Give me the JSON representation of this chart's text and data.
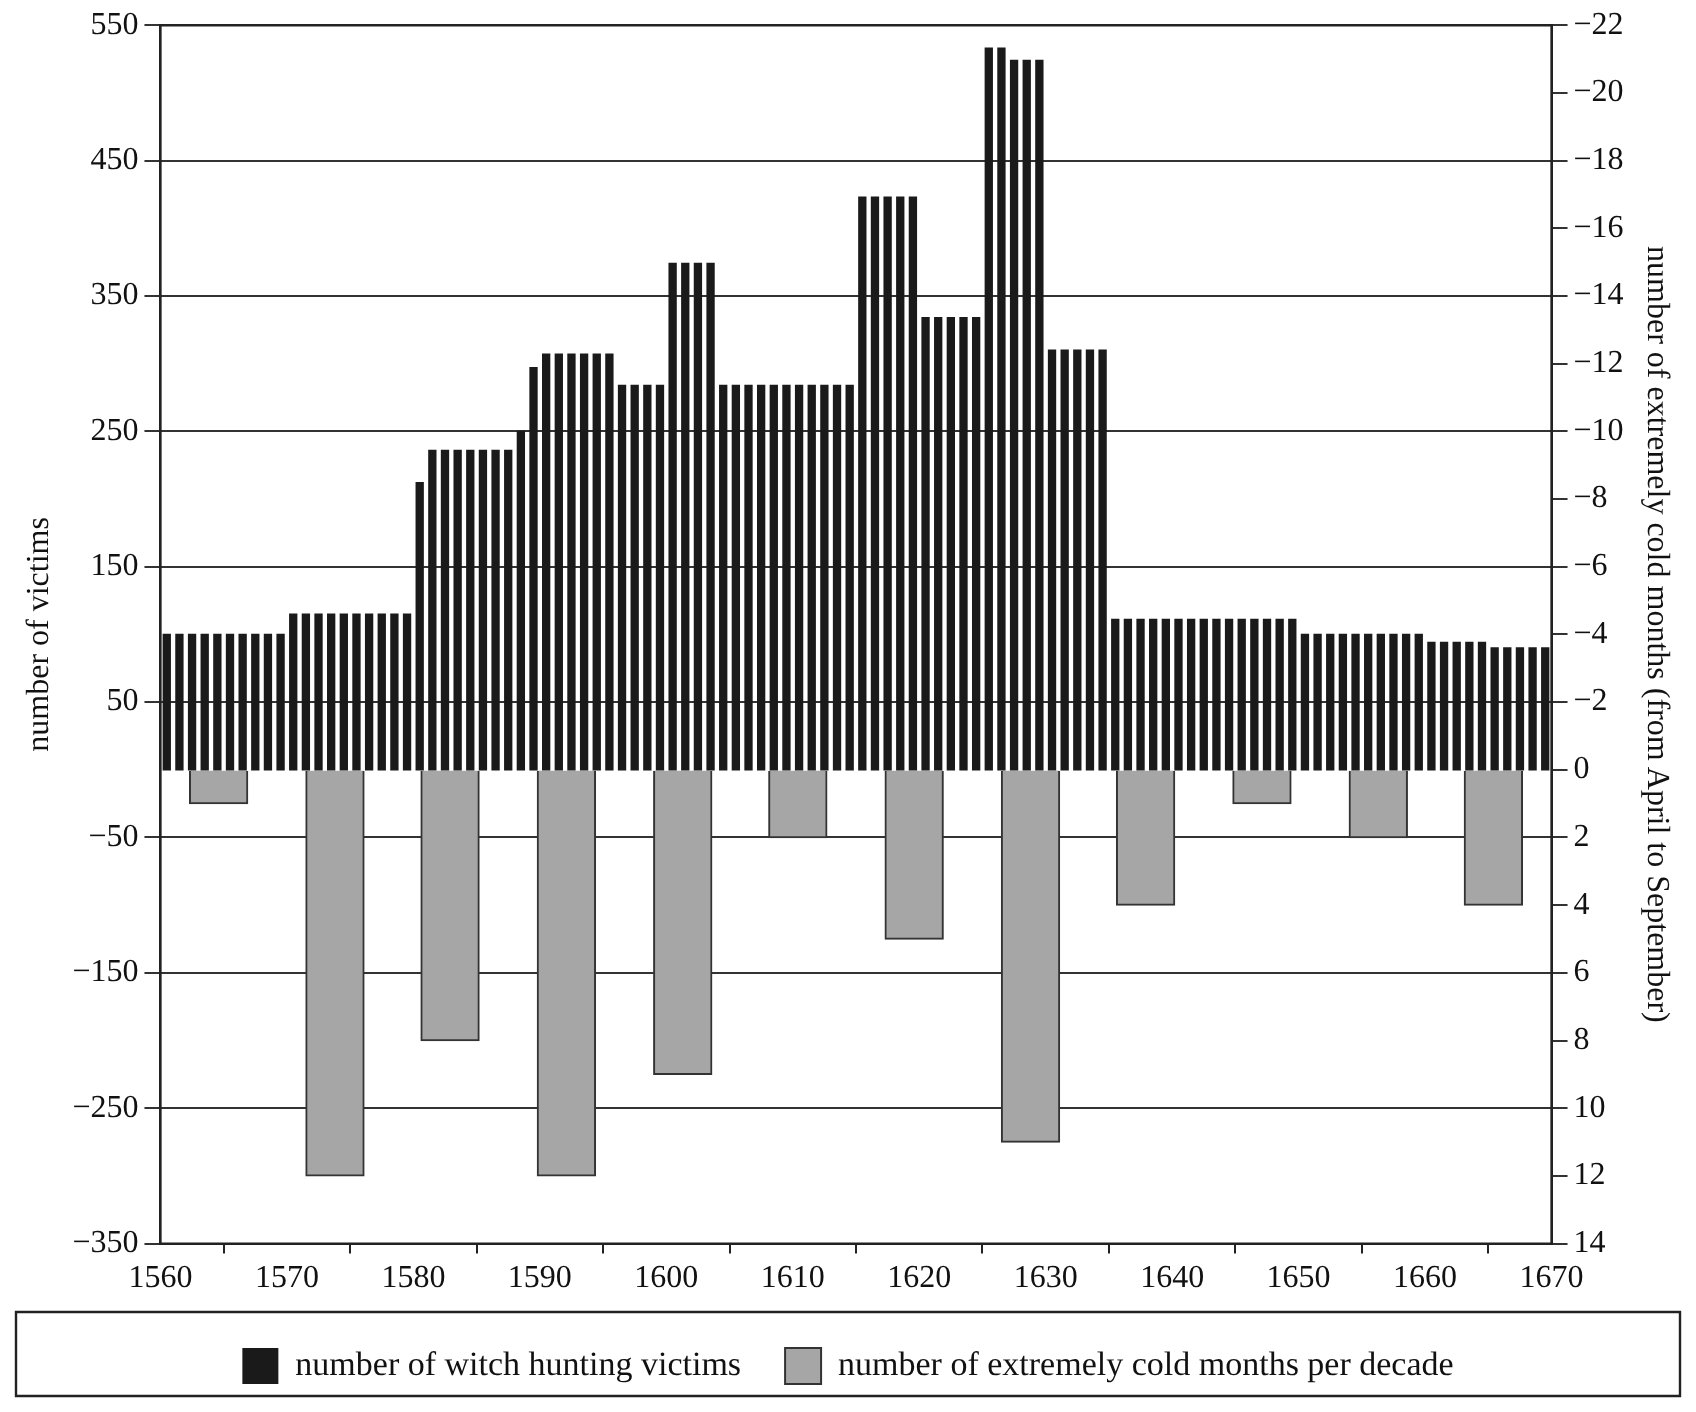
{
  "chart_data": {
    "type": "bar",
    "xlabel": null,
    "ylabel": "number of victims",
    "y2label": "number of extremely cold months (from April to September)",
    "xlim": [
      1560,
      1670
    ],
    "xticks": [
      1560,
      1570,
      1580,
      1590,
      1600,
      1610,
      1620,
      1630,
      1640,
      1650,
      1660,
      1670
    ],
    "ylim": [
      -350,
      550
    ],
    "yticks": [
      {
        "value": -350,
        "label": "−350"
      },
      {
        "value": -250,
        "label": "−250"
      },
      {
        "value": -150,
        "label": "−150"
      },
      {
        "value": -50,
        "label": "−50"
      },
      50,
      150,
      250,
      350,
      450,
      550
    ],
    "y2lim": [
      14,
      -22
    ],
    "y2ticks": [
      14,
      12,
      10,
      8,
      6,
      4,
      2,
      0,
      {
        "value": -2,
        "label": "−2"
      },
      {
        "value": -4,
        "label": "−4"
      },
      {
        "value": -6,
        "label": "−6"
      },
      {
        "value": -8,
        "label": "−8"
      },
      {
        "value": -10,
        "label": "−10"
      },
      {
        "value": -12,
        "label": "−12"
      },
      {
        "value": -14,
        "label": "−14"
      },
      {
        "value": -16,
        "label": "−16"
      },
      {
        "value": -18,
        "label": "−18"
      },
      {
        "value": -20,
        "label": "−20"
      },
      {
        "value": -22,
        "label": "−22"
      }
    ],
    "grid": "y",
    "legend": "bottom",
    "series": [
      {
        "name": "number of witch hunting victims",
        "color": "#1a1a1a",
        "x": [
          1560.5,
          1561.5,
          1562.5,
          1563.5,
          1564.5,
          1565.5,
          1566.5,
          1567.5,
          1568.5,
          1569.5,
          1570.5,
          1571.5,
          1572.5,
          1573.5,
          1574.5,
          1575.5,
          1576.5,
          1577.5,
          1578.5,
          1579.5,
          1580.5,
          1581.5,
          1582.5,
          1583.5,
          1584.5,
          1585.5,
          1586.5,
          1587.5,
          1588.5,
          1589.5,
          1590.5,
          1591.5,
          1592.5,
          1593.5,
          1594.5,
          1595.5,
          1596.5,
          1597.5,
          1598.5,
          1599.5,
          1600.5,
          1601.5,
          1602.5,
          1603.5,
          1604.5,
          1605.5,
          1606.5,
          1607.5,
          1608.5,
          1609.5,
          1610.5,
          1611.5,
          1612.5,
          1613.5,
          1614.5,
          1615.5,
          1616.5,
          1617.5,
          1618.5,
          1619.5,
          1620.5,
          1621.5,
          1622.5,
          1623.5,
          1624.5,
          1625.5,
          1626.5,
          1627.5,
          1628.5,
          1629.5,
          1630.5,
          1631.5,
          1632.5,
          1633.5,
          1634.5,
          1635.5,
          1636.5,
          1637.5,
          1638.5,
          1639.5,
          1640.5,
          1641.5,
          1642.5,
          1643.5,
          1644.5,
          1645.5,
          1646.5,
          1647.5,
          1648.5,
          1649.5,
          1650.5,
          1651.5,
          1652.5,
          1653.5,
          1654.5,
          1655.5,
          1656.5,
          1657.5,
          1658.5,
          1659.5,
          1660.5,
          1661.5,
          1662.5,
          1663.5,
          1664.5,
          1665.5,
          1666.5,
          1667.5,
          1668.5,
          1669.5
        ],
        "values": [
          100,
          100,
          100,
          100,
          100,
          100,
          100,
          100,
          100,
          100,
          115,
          115,
          115,
          115,
          115,
          115,
          115,
          115,
          115,
          115,
          212,
          236,
          236,
          236,
          236,
          236,
          236,
          236,
          250,
          297,
          307,
          307,
          307,
          307,
          307,
          307,
          284,
          284,
          284,
          284,
          374,
          374,
          374,
          374,
          284,
          284,
          284,
          284,
          284,
          284,
          284,
          284,
          284,
          284,
          284,
          423,
          423,
          423,
          423,
          423,
          334,
          334,
          334,
          334,
          334,
          533,
          533,
          524,
          524,
          524,
          310,
          310,
          310,
          310,
          310,
          111,
          111,
          111,
          111,
          111,
          111,
          111,
          111,
          111,
          111,
          111,
          111,
          111,
          111,
          111,
          100,
          100,
          100,
          100,
          100,
          100,
          100,
          100,
          100,
          100,
          94,
          94,
          94,
          94,
          94,
          90,
          90,
          90,
          90,
          90
        ]
      },
      {
        "name": "number of extremely cold months per decade",
        "color": "#a6a6a6",
        "axis": "y2",
        "x": [
          1564.6,
          1573.8,
          1582.9,
          1592.1,
          1601.3,
          1610.4,
          1619.6,
          1628.8,
          1637.9,
          1647.1,
          1656.3,
          1665.4
        ],
        "values": [
          1,
          12,
          8,
          12,
          9,
          2,
          5,
          11,
          4,
          1,
          2,
          4
        ]
      }
    ]
  }
}
